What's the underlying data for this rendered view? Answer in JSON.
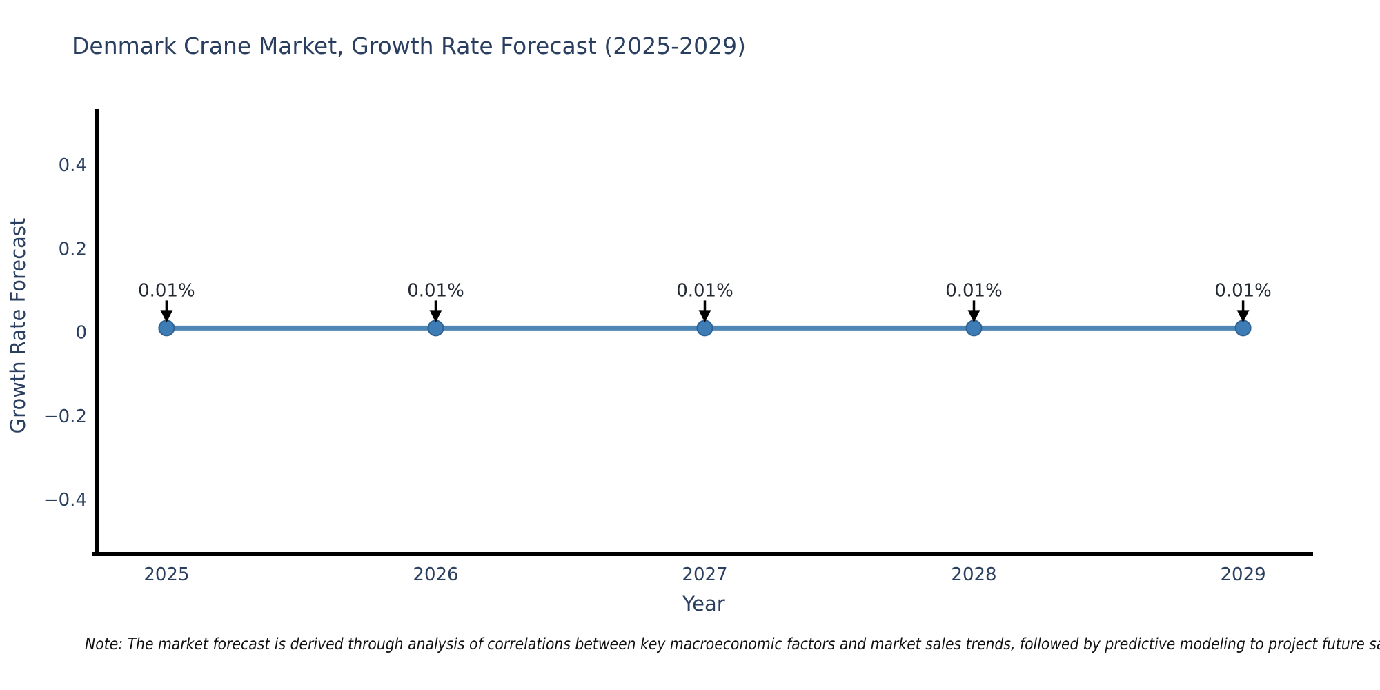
{
  "title": "Denmark Crane Market, Growth Rate Forecast (2025-2029)",
  "note": {
    "text": "Note: The market forecast is derived through analysis of correlations between key macroeconomic factors and market sales trends, followed by predictive modeling to project future sal"
  },
  "chart_data": {
    "type": "line",
    "title": "Denmark Crane Market, Growth Rate Forecast (2025-2029)",
    "xlabel": "Year",
    "ylabel": "Growth Rate Forecast",
    "x": [
      2025,
      2026,
      2027,
      2028,
      2029
    ],
    "series": [
      {
        "name": "Growth Rate Forecast",
        "values": [
          0.01,
          0.01,
          0.01,
          0.01,
          0.01
        ]
      }
    ],
    "point_labels": [
      "0.01%",
      "0.01%",
      "0.01%",
      "0.01%",
      "0.01%"
    ],
    "xtick_labels": [
      "2025",
      "2026",
      "2027",
      "2028",
      "2029"
    ],
    "ytick_values": [
      0.4,
      0.2,
      0,
      -0.2,
      -0.4
    ],
    "ytick_labels": [
      "0.4",
      "0.2",
      "0",
      "−0.2",
      "−0.4"
    ],
    "xlim": [
      2024.74,
      2029.26
    ],
    "ylim": [
      -0.53,
      0.53
    ],
    "grid": false,
    "legend": null,
    "colors": {
      "line": "#4e87b5",
      "marker_fill": "#3e7cb5",
      "marker_edge": "#2f6293",
      "axis": "#000000",
      "text": "#2a3f5f",
      "annotation_text": "#222831",
      "annotation_arrow": "#000000"
    }
  }
}
